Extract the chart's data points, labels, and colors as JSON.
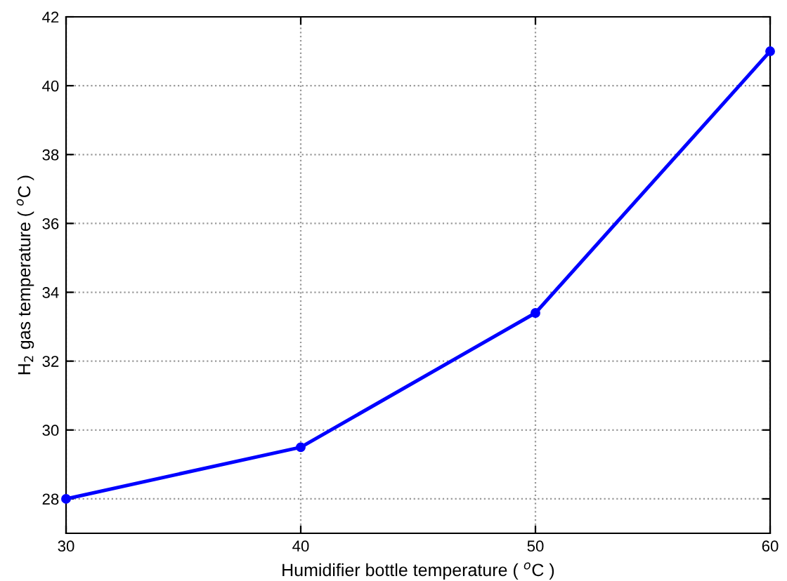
{
  "chart_data": {
    "type": "line",
    "xlabel": "Humidifier bottle temperature ( $^{o}$C )",
    "ylabel": "H$_{2}$ gas temperature ( $^{o}$C )",
    "x": [
      30,
      40,
      50,
      60
    ],
    "series": [
      {
        "color": "#0000ff",
        "values": [
          28,
          29.5,
          33.4,
          41
        ]
      }
    ],
    "xlim": [
      30,
      60
    ],
    "xticks": [
      30,
      40,
      50,
      60
    ],
    "ylim": [
      27,
      42
    ],
    "yticks": [
      28,
      30,
      32,
      34,
      36,
      38,
      40,
      42
    ],
    "grid": true,
    "marker": "circle",
    "line_style": "solid"
  }
}
